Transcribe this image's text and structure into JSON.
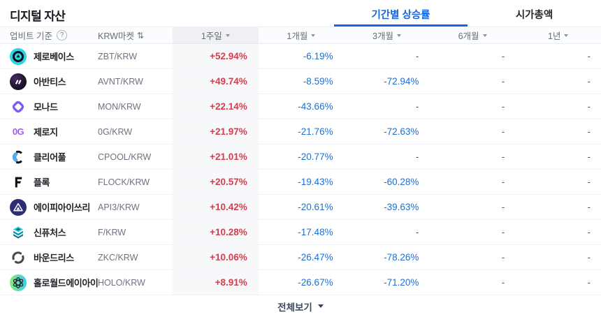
{
  "page": {
    "title": "디지털 자산",
    "tabs": [
      {
        "id": "period-change",
        "label": "기간별 상승률",
        "active": true
      },
      {
        "id": "market-cap",
        "label": "시가총액",
        "active": false
      }
    ],
    "footer": {
      "view_all_label": "전체보기"
    }
  },
  "table": {
    "meta_header": {
      "basis_label": "업비트 기준",
      "help_icon": "?",
      "market_label": "KRW마켓",
      "sort_icon": "⇅"
    },
    "period_columns": [
      {
        "id": "1w",
        "label": "1주일",
        "highlighted": true
      },
      {
        "id": "1m",
        "label": "1개월",
        "highlighted": false
      },
      {
        "id": "3m",
        "label": "3개월",
        "highlighted": false
      },
      {
        "id": "6m",
        "label": "6개월",
        "highlighted": false
      },
      {
        "id": "1y",
        "label": "1년",
        "highlighted": false
      }
    ],
    "rows": [
      {
        "name": "제로베이스",
        "pair": "ZBT/KRW",
        "icon": "zbt-icon",
        "values": [
          "+52.94%",
          "-6.19%",
          "-",
          "-",
          "-"
        ]
      },
      {
        "name": "아반티스",
        "pair": "AVNT/KRW",
        "icon": "avnt-icon",
        "values": [
          "+49.74%",
          "-8.59%",
          "-72.94%",
          "-",
          "-"
        ]
      },
      {
        "name": "모나드",
        "pair": "MON/KRW",
        "icon": "mon-icon",
        "values": [
          "+22.14%",
          "-43.66%",
          "-",
          "-",
          "-"
        ]
      },
      {
        "name": "제로지",
        "pair": "0G/KRW",
        "icon": "zerog-icon",
        "values": [
          "+21.97%",
          "-21.76%",
          "-72.63%",
          "-",
          "-"
        ]
      },
      {
        "name": "클리어풀",
        "pair": "CPOOL/KRW",
        "icon": "cpool-icon",
        "values": [
          "+21.01%",
          "-20.77%",
          "-",
          "-",
          "-"
        ]
      },
      {
        "name": "플록",
        "pair": "FLOCK/KRW",
        "icon": "flock-icon",
        "values": [
          "+20.57%",
          "-19.43%",
          "-60.28%",
          "-",
          "-"
        ]
      },
      {
        "name": "에이피아이쓰리",
        "pair": "API3/KRW",
        "icon": "api3-icon",
        "values": [
          "+10.42%",
          "-20.61%",
          "-39.63%",
          "-",
          "-"
        ]
      },
      {
        "name": "신퓨처스",
        "pair": "F/KRW",
        "icon": "synfutures-icon",
        "values": [
          "+10.28%",
          "-17.48%",
          "-",
          "-",
          "-"
        ]
      },
      {
        "name": "바운드리스",
        "pair": "ZKC/KRW",
        "icon": "zkc-icon",
        "values": [
          "+10.06%",
          "-26.47%",
          "-78.26%",
          "-",
          "-"
        ]
      },
      {
        "name": "홀로월드에이아이",
        "pair": "HOLO/KRW",
        "icon": "holo-icon",
        "values": [
          "+8.91%",
          "-26.67%",
          "-71.20%",
          "-",
          "-"
        ]
      }
    ]
  },
  "colors": {
    "positive": "#d1404f",
    "negative": "#1f6fd2",
    "accent": "#1567dd",
    "highlight_column_bg": "#f7f8fa"
  }
}
